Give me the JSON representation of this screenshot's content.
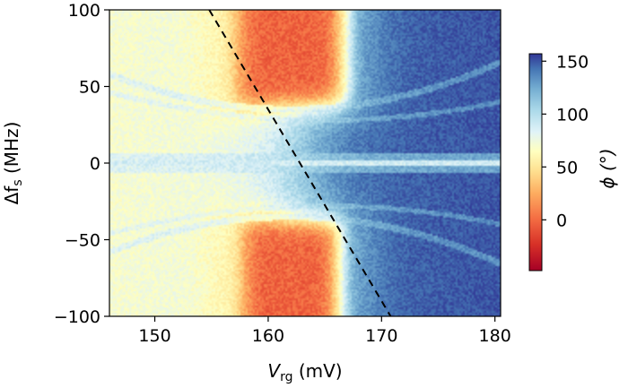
{
  "chart_data": {
    "type": "heatmap",
    "title": "",
    "xlabel": {
      "main": "V",
      "sub": "rg",
      "unit": " (mV)"
    },
    "ylabel": {
      "main": "Δf",
      "sub": "s",
      "unit": " (MHz)"
    },
    "xlim": [
      146,
      180.5
    ],
    "ylim": [
      -100,
      100
    ],
    "xticks": [
      150,
      160,
      170,
      180
    ],
    "yticks": [
      100,
      50,
      0,
      -50,
      -100
    ],
    "colorbar": {
      "label": "ϕ (°)",
      "range": [
        -48,
        157
      ],
      "ticks": [
        150,
        100,
        50,
        0
      ],
      "colormap": [
        "#a50026",
        "#d73027",
        "#f46d43",
        "#fdae61",
        "#fee090",
        "#ffffbf",
        "#e0f3f8",
        "#abd9e9",
        "#74add1",
        "#4575b4",
        "#313695"
      ]
    },
    "features": {
      "dashed_line": {
        "from": [
          154.8,
          100
        ],
        "to": [
          170.8,
          -100
        ],
        "style": "dashed",
        "color": "#000000"
      },
      "horizontal_band": {
        "y": 0,
        "phase": 90
      },
      "upper_red_region": {
        "x_range": [
          157,
          167
        ],
        "y_range": [
          35,
          100
        ],
        "phase": -10
      },
      "lower_red_region": {
        "x_range": [
          157.5,
          166.5
        ],
        "y_range": [
          -100,
          -35
        ],
        "phase": -10
      },
      "background_left_phase": 60,
      "background_right_phase": 135
    }
  }
}
